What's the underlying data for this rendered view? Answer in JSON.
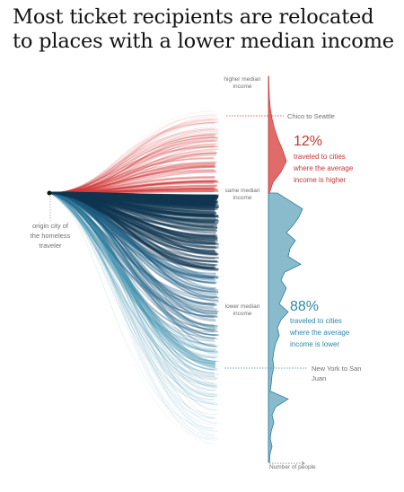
{
  "chart_data": {
    "type": "area",
    "title": "Most ticket recipients are relocated to places with a lower median income",
    "origin_label": [
      "origin city of",
      "the homeless",
      "traveler"
    ],
    "axis_labels": {
      "higher": [
        "higher median",
        "income"
      ],
      "same": [
        "same median",
        "income"
      ],
      "lower": [
        "lower median",
        "income"
      ]
    },
    "x_axis_label": "Number of people",
    "annotations": {
      "higher_example": "Chico to Seattle",
      "lower_example": [
        "New York to San",
        "Juan"
      ]
    },
    "series": [
      {
        "name": "higher",
        "color": "#d43a3a",
        "percent": "12%",
        "description": [
          "traveled to cities",
          "where the average",
          "income is higher"
        ]
      },
      {
        "name": "lower",
        "color": "#3a8eac",
        "percent": "88%",
        "description": [
          "traveled to cities",
          "where the average",
          "income is lower"
        ]
      }
    ],
    "y_relative_income": [
      -1.0,
      -0.6,
      -0.3,
      0.0,
      0.15,
      0.4,
      0.8,
      1.2,
      1.6,
      2.0,
      2.4,
      2.8
    ],
    "higher_density": [
      0.02,
      0.03,
      0.05,
      0.1,
      0.2,
      0.35,
      0.55,
      0.8,
      1.0,
      0.7,
      0.25,
      0.05
    ],
    "lower_density": [
      0.25,
      0.6,
      0.95,
      0.85,
      0.7,
      0.5,
      0.75,
      0.6,
      0.55,
      0.9,
      0.45,
      0.35,
      0.5,
      0.4,
      0.3,
      0.55,
      0.35,
      0.25,
      0.3,
      0.2,
      0.15,
      0.12,
      0.15,
      0.1,
      0.08,
      0.05,
      0.55,
      0.2,
      0.1,
      0.15,
      0.08,
      0.05,
      0.1,
      0.04,
      0.03
    ]
  }
}
